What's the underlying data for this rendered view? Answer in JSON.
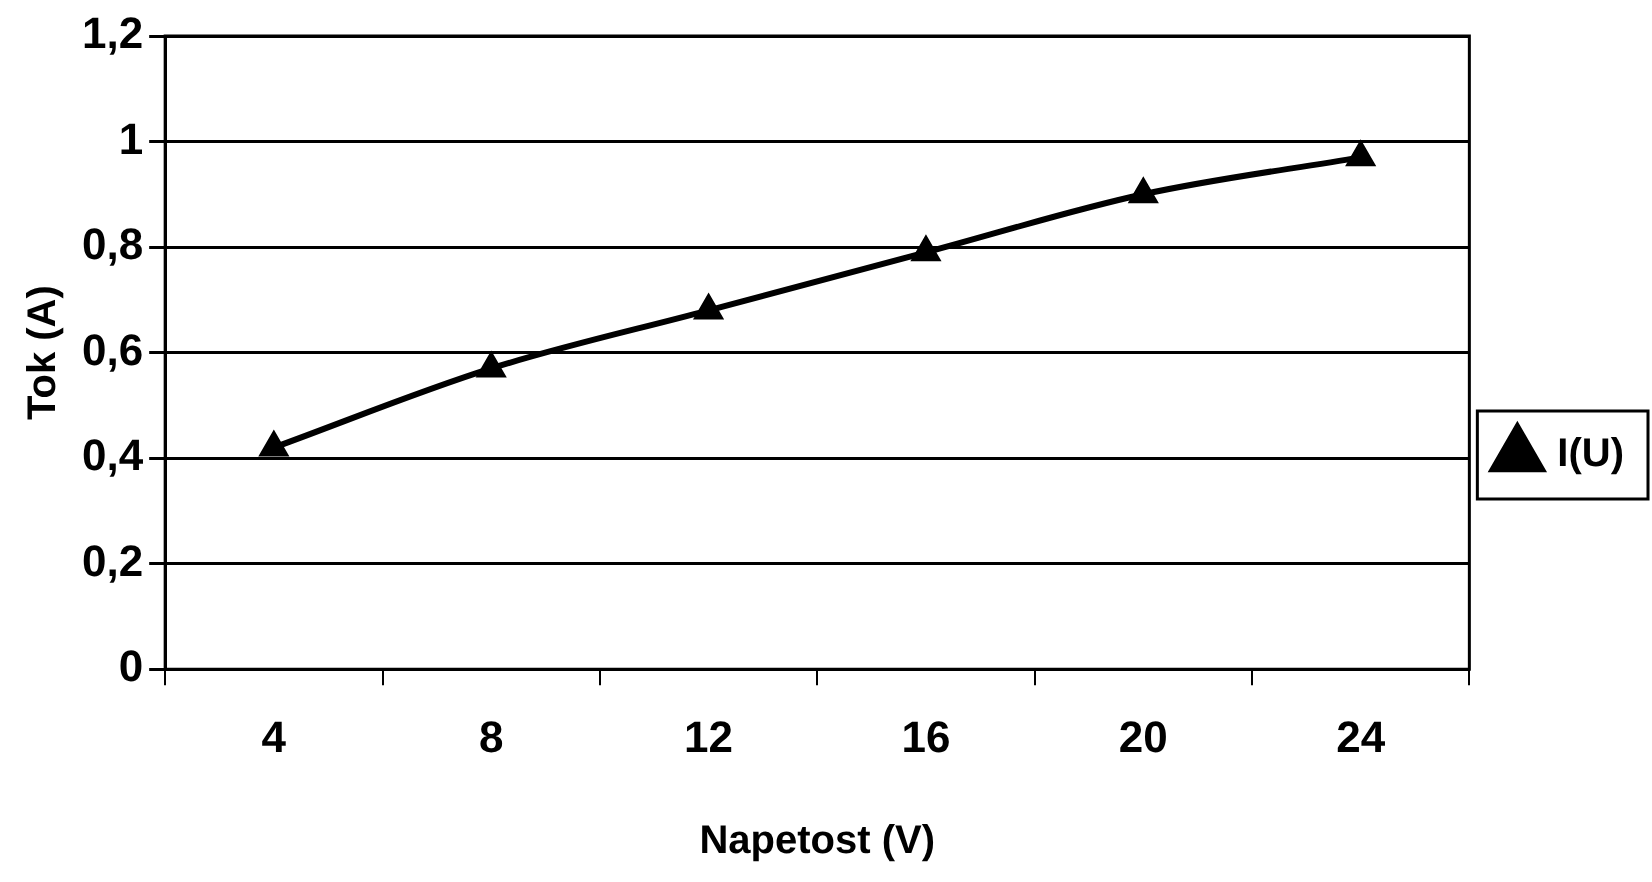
{
  "chart_data": {
    "type": "line",
    "xlabel": "Napetost (V)",
    "ylabel": "Tok (A)",
    "categories": [
      "4",
      "8",
      "12",
      "16",
      "20",
      "24"
    ],
    "series": [
      {
        "name": "I(U)",
        "color": "#000000",
        "values": [
          0.42,
          0.57,
          0.68,
          0.79,
          0.9,
          0.97
        ]
      }
    ],
    "ylim": [
      0,
      1.2
    ],
    "yticks": [
      0,
      {
        "value": 0.2,
        "label": "0,2"
      },
      {
        "value": 0.4,
        "label": "0,4"
      },
      {
        "value": 0.6,
        "label": "0,6"
      },
      {
        "value": 0.8,
        "label": "0,8"
      },
      1,
      {
        "value": 1.2,
        "label": "1,2"
      }
    ],
    "grid": "y",
    "legend": "right",
    "marker": "triangle",
    "line_style": "solid"
  }
}
